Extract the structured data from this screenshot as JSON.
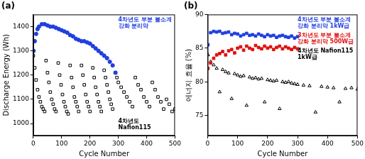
{
  "chart_data": [
    {
      "type": "scatter",
      "title": "(a)",
      "x_label": "Cycle Number",
      "y_label": "Discharge Energy (Wh)",
      "xlim": [
        0,
        500
      ],
      "xticks": [
        0,
        100,
        200,
        300,
        400,
        500
      ],
      "ylim": [
        950,
        1450
      ],
      "yticks": [
        1000,
        1100,
        1200,
        1300,
        1400
      ],
      "grid": false,
      "series": [
        {
          "name": "4차년도 부분 불소계 강화 분리막",
          "color": "#1f3fe0",
          "marker": "circle",
          "x": [
            1,
            5,
            10,
            15,
            20,
            30,
            40,
            50,
            60,
            70,
            80,
            90,
            100,
            110,
            120,
            130,
            140,
            150,
            160,
            170,
            180,
            190,
            200,
            210,
            220,
            230,
            240,
            250,
            260,
            270,
            280,
            290
          ],
          "values": [
            1300,
            1340,
            1370,
            1390,
            1400,
            1410,
            1410,
            1405,
            1400,
            1400,
            1395,
            1390,
            1385,
            1380,
            1375,
            1365,
            1360,
            1350,
            1345,
            1340,
            1340,
            1335,
            1330,
            1320,
            1310,
            1300,
            1290,
            1280,
            1270,
            1255,
            1240,
            1210
          ]
        },
        {
          "name": "4차년도 Nafion115",
          "color": "#000000",
          "marker": "square-open",
          "x": [
            0,
            5,
            10,
            15,
            20,
            25,
            30,
            35,
            40,
            45,
            50,
            55,
            60,
            65,
            70,
            75,
            80,
            88,
            93,
            98,
            103,
            108,
            113,
            118,
            123,
            130,
            135,
            140,
            145,
            150,
            155,
            160,
            170,
            175,
            180,
            185,
            190,
            195,
            200,
            210,
            215,
            220,
            225,
            230,
            235,
            240,
            250,
            255,
            260,
            265,
            270,
            275,
            280,
            290,
            295,
            300,
            310,
            320,
            330,
            340,
            350,
            360,
            370,
            380,
            390,
            400,
            410,
            420,
            430,
            440,
            450,
            460,
            470,
            480,
            490,
            500
          ],
          "values": [
            1280,
            1230,
            1180,
            1140,
            1110,
            1090,
            1070,
            1060,
            1050,
            1260,
            1210,
            1170,
            1130,
            1100,
            1080,
            1060,
            1050,
            1250,
            1200,
            1160,
            1120,
            1090,
            1070,
            1050,
            1040,
            1240,
            1190,
            1150,
            1110,
            1090,
            1070,
            1050,
            1240,
            1200,
            1160,
            1120,
            1090,
            1070,
            1050,
            1230,
            1190,
            1150,
            1120,
            1090,
            1070,
            1050,
            1220,
            1190,
            1160,
            1130,
            1100,
            1080,
            1060,
            1210,
            1190,
            1170,
            1150,
            1130,
            1110,
            1090,
            1070,
            1190,
            1160,
            1140,
            1110,
            1090,
            1070,
            1170,
            1140,
            1110,
            1090,
            1060,
            1100,
            1080,
            1050,
            1060
          ]
        }
      ]
    },
    {
      "type": "scatter",
      "title": "(b)",
      "x_label": "Cycle Number",
      "y_label": "에너지 효율 (%)",
      "xlim": [
        0,
        500
      ],
      "xticks": [
        0,
        100,
        200,
        300,
        400,
        500
      ],
      "ylim": [
        72,
        90
      ],
      "yticks": [
        75,
        80,
        85,
        90
      ],
      "grid": false,
      "series": [
        {
          "name": "4차년도 부분 불소계 강화 분리막 1kW급",
          "color": "#1f3fe0",
          "marker": "square",
          "x": [
            1,
            10,
            20,
            30,
            40,
            50,
            60,
            70,
            80,
            90,
            100,
            110,
            120,
            130,
            140,
            150,
            160,
            170,
            180,
            190,
            200,
            210,
            220,
            230,
            240,
            250,
            260,
            270,
            280,
            290,
            300
          ],
          "values": [
            85.5,
            87.3,
            87.5,
            87.4,
            87.5,
            87.2,
            87.3,
            87.4,
            87.0,
            87.2,
            87.1,
            86.8,
            87.0,
            87.2,
            86.9,
            87.0,
            86.8,
            87.1,
            86.9,
            86.7,
            87.0,
            86.8,
            86.9,
            86.6,
            86.8,
            86.9,
            86.7,
            86.6,
            86.8,
            86.5,
            86.7
          ]
        },
        {
          "name": "3차년도 부분 불소계 강화 분리막 500W급",
          "color": "#e01010",
          "marker": "square",
          "x": [
            1,
            10,
            20,
            30,
            40,
            50,
            60,
            70,
            80,
            90,
            100,
            110,
            120,
            130,
            140,
            150,
            160,
            170,
            180,
            190,
            200,
            210,
            220,
            230,
            240,
            250,
            260,
            270,
            280,
            290,
            300
          ],
          "values": [
            82.0,
            82.8,
            83.5,
            84.0,
            84.2,
            84.5,
            84.0,
            84.6,
            84.8,
            84.3,
            85.0,
            85.2,
            84.7,
            85.3,
            85.0,
            84.8,
            85.4,
            85.1,
            84.9,
            85.3,
            85.0,
            85.2,
            84.8,
            85.1,
            85.3,
            84.9,
            85.2,
            85.0,
            84.8,
            85.1,
            84.9
          ]
        },
        {
          "name": "4차년도 Nafion115 1kW급",
          "color": "#000000",
          "marker": "triangle-open",
          "x": [
            1,
            10,
            20,
            30,
            40,
            50,
            60,
            70,
            80,
            90,
            100,
            110,
            120,
            130,
            140,
            150,
            160,
            170,
            180,
            190,
            200,
            210,
            220,
            230,
            240,
            250,
            260,
            270,
            280,
            290,
            300,
            320,
            340,
            360,
            380,
            400,
            420,
            440,
            460,
            480,
            500
          ],
          "values": [
            84.0,
            83.0,
            82.5,
            82.0,
            78.5,
            81.8,
            81.5,
            81.3,
            77.5,
            81.2,
            81.0,
            80.8,
            80.9,
            76.5,
            80.7,
            80.5,
            80.6,
            80.4,
            80.5,
            77.0,
            80.3,
            80.2,
            80.1,
            80.2,
            76.0,
            80.0,
            79.9,
            80.0,
            79.8,
            79.7,
            79.6,
            79.5,
            79.4,
            75.5,
            79.3,
            79.2,
            79.1,
            77.0,
            79.0,
            79.1,
            78.9
          ]
        }
      ]
    }
  ]
}
